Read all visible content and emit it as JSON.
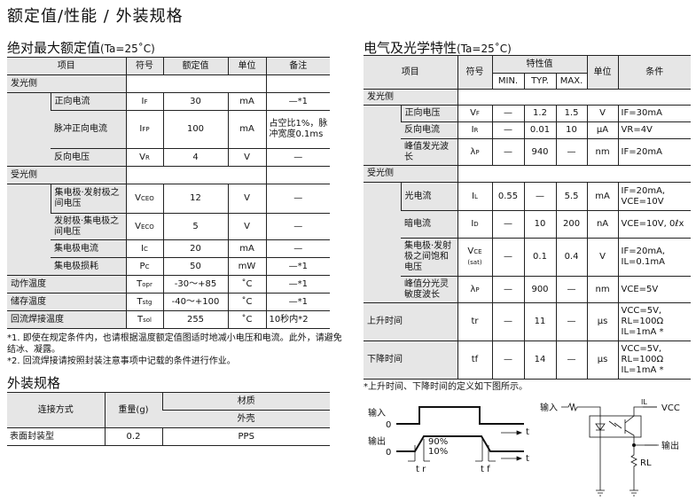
{
  "page_title": "额定值/性能 / 外装规格",
  "abs_max": {
    "title": "绝对最大额定值",
    "cond": "(Ta=25˚C)",
    "headers": [
      "项目",
      "符号",
      "额定值",
      "单位",
      "备注"
    ],
    "groups": {
      "emit": "发光侧",
      "recv": "受光侧"
    },
    "rows": [
      {
        "item": "正向电流",
        "sym": "I",
        "sub": "F",
        "val": "30",
        "unit": "mA",
        "note": "—*1"
      },
      {
        "item": "脉冲正向电流",
        "sym": "I",
        "sub": "FP",
        "val": "100",
        "unit": "mA",
        "note": "占空比1%，脉冲宽度0.1ms"
      },
      {
        "item": "反向电压",
        "sym": "V",
        "sub": "R",
        "val": "4",
        "unit": "V",
        "note": "—"
      },
      {
        "item": "集电极·发射极之间电压",
        "sym": "V",
        "sub": "CEO",
        "val": "12",
        "unit": "V",
        "note": "—"
      },
      {
        "item": "发射极·集电极之间电压",
        "sym": "V",
        "sub": "ECO",
        "val": "5",
        "unit": "V",
        "note": "—"
      },
      {
        "item": "集电极电流",
        "sym": "I",
        "sub": "C",
        "val": "20",
        "unit": "mA",
        "note": "—"
      },
      {
        "item": "集电极损耗",
        "sym": "P",
        "sub": "C",
        "val": "50",
        "unit": "mW",
        "note": "—*1"
      },
      {
        "item": "动作温度",
        "sym": "T",
        "sub": "opr",
        "val": "-30～+85",
        "unit": "˚C",
        "note": "—*1"
      },
      {
        "item": "储存温度",
        "sym": "T",
        "sub": "stg",
        "val": "-40～+100",
        "unit": "˚C",
        "note": "—*1"
      },
      {
        "item": "回流焊接温度",
        "sym": "T",
        "sub": "sol",
        "val": "255",
        "unit": "˚C",
        "note": "10秒内*2"
      }
    ],
    "footnotes": [
      "*1.  即使在规定条件内，也请根据温度额定值图适时地减小电压和电流。此外，请避免结冰、凝露。",
      "*2.  回流焊接请按照封装注意事项中记载的条件进行作业。"
    ]
  },
  "package": {
    "title": "外装规格",
    "headers": {
      "conn": "连接方式",
      "weight": "重量(g)",
      "material": "材质",
      "case": "外壳"
    },
    "row": {
      "conn": "表面封装型",
      "weight": "0.2",
      "case": "PPS"
    }
  },
  "elec": {
    "title": "电气及光学特性",
    "cond": "(Ta=25˚C)",
    "headers": {
      "item": "项目",
      "sym": "符号",
      "char": "特性值",
      "min": "MIN.",
      "typ": "TYP.",
      "max": "MAX.",
      "unit": "单位",
      "cond": "条件"
    },
    "groups": {
      "emit": "发光侧",
      "recv": "受光侧"
    },
    "rows": [
      {
        "item": "正向电压",
        "sym": "V",
        "sub": "F",
        "min": "—",
        "typ": "1.2",
        "max": "1.5",
        "unit": "V",
        "cond": "IF=30mA"
      },
      {
        "item": "反向电流",
        "sym": "I",
        "sub": "R",
        "min": "—",
        "typ": "0.01",
        "max": "10",
        "unit": "μA",
        "cond": "VR=4V"
      },
      {
        "item": "峰值发光波长",
        "sym": "λ",
        "sub": "P",
        "min": "—",
        "typ": "940",
        "max": "—",
        "unit": "nm",
        "cond": "IF=20mA"
      },
      {
        "item": "光电流",
        "sym": "I",
        "sub": "L",
        "min": "0.55",
        "typ": "—",
        "max": "5.5",
        "unit": "mA",
        "cond": "IF=20mA, VCE=10V"
      },
      {
        "item": "暗电流",
        "sym": "I",
        "sub": "D",
        "min": "—",
        "typ": "10",
        "max": "200",
        "unit": "nA",
        "cond": "VCE=10V, 0ℓx"
      },
      {
        "item": "集电极·发射极之间饱和电压",
        "sym": "V",
        "sub": "CE (sat)",
        "min": "—",
        "typ": "0.1",
        "max": "0.4",
        "unit": "V",
        "cond": "IF=20mA, IL=0.1mA"
      },
      {
        "item": "峰值分光灵敏度波长",
        "sym": "λ",
        "sub": "P",
        "min": "—",
        "typ": "900",
        "max": "—",
        "unit": "nm",
        "cond": "VCE=5V"
      },
      {
        "item": "上升时间",
        "sym": "tr",
        "sub": "",
        "min": "—",
        "typ": "11",
        "max": "—",
        "unit": "μs",
        "cond": "VCC=5V, RL=100Ω IL=1mA *"
      },
      {
        "item": "下降时间",
        "sym": "tf",
        "sub": "",
        "min": "—",
        "typ": "14",
        "max": "—",
        "unit": "μs",
        "cond": "VCC=5V, RL=100Ω IL=1mA *"
      }
    ],
    "footnote": "*上升时间、下降时间的定义如下图所示。"
  },
  "diagram": {
    "input": "输入",
    "output": "输出",
    "zero": "0",
    "t": "t",
    "p90": "90%",
    "p10": "10%",
    "tr": "t r",
    "tf": "t f",
    "vcc": "VCC",
    "il": "IL",
    "rl": "RL"
  }
}
